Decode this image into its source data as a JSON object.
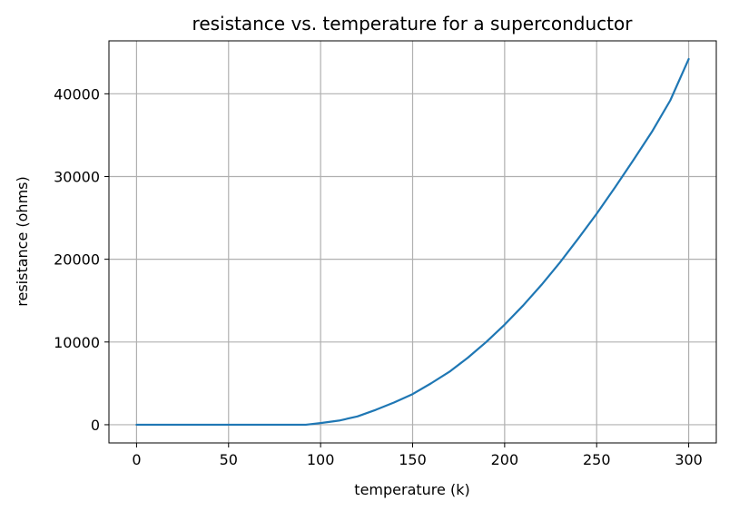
{
  "chart_data": {
    "type": "line",
    "title": "resistance vs. temperature for a superconductor",
    "xlabel": "temperature (k)",
    "ylabel": "resistance (ohms)",
    "xlim": [
      -15,
      315
    ],
    "ylim": [
      -2200,
      46400
    ],
    "xticks": [
      0,
      50,
      100,
      150,
      200,
      250,
      300
    ],
    "yticks": [
      0,
      10000,
      20000,
      30000,
      40000
    ],
    "xtick_labels": [
      "0",
      "50",
      "100",
      "150",
      "200",
      "250",
      "300"
    ],
    "ytick_labels": [
      "0",
      "10000",
      "20000",
      "30000",
      "40000"
    ],
    "grid": true,
    "legend": "none",
    "series": [
      {
        "color": "#1f77b4",
        "x": [
          0,
          20,
          40,
          60,
          80,
          92,
          100,
          110,
          120,
          130,
          140,
          150,
          160,
          170,
          180,
          190,
          200,
          210,
          220,
          230,
          240,
          250,
          260,
          270,
          280,
          290,
          300
        ],
        "y": [
          0,
          0,
          0,
          0,
          0,
          0,
          200,
          500,
          1000,
          1800,
          2700,
          3700,
          5000,
          6400,
          8100,
          10000,
          12100,
          14400,
          16900,
          19600,
          22500,
          25500,
          28700,
          32000,
          35400,
          39200,
          44200
        ]
      }
    ]
  }
}
